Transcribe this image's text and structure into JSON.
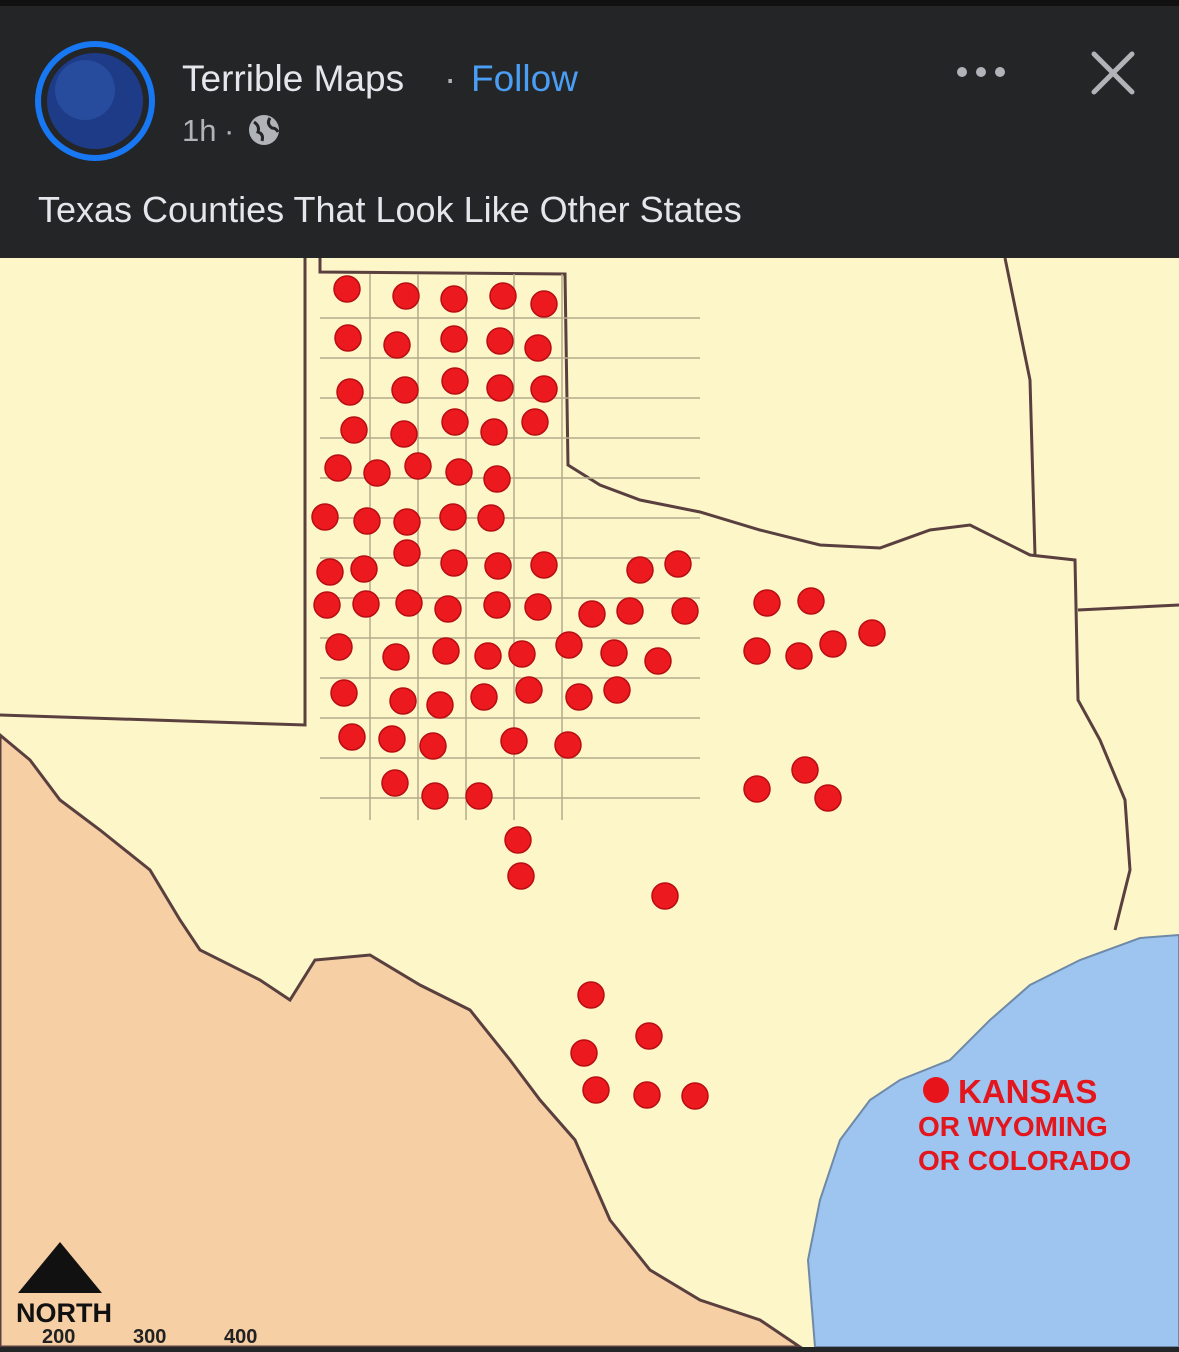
{
  "post": {
    "author": "Terrible Maps",
    "separator": "·",
    "follow": "Follow",
    "time": "1h",
    "time_separator": "·",
    "caption": "Texas Counties That Look Like Other States"
  },
  "map": {
    "legend": [
      "KANSAS",
      "OR WYOMING",
      "OR COLORADO"
    ],
    "compass": "NORTH",
    "scale": [
      "200",
      "300",
      "400"
    ]
  }
}
